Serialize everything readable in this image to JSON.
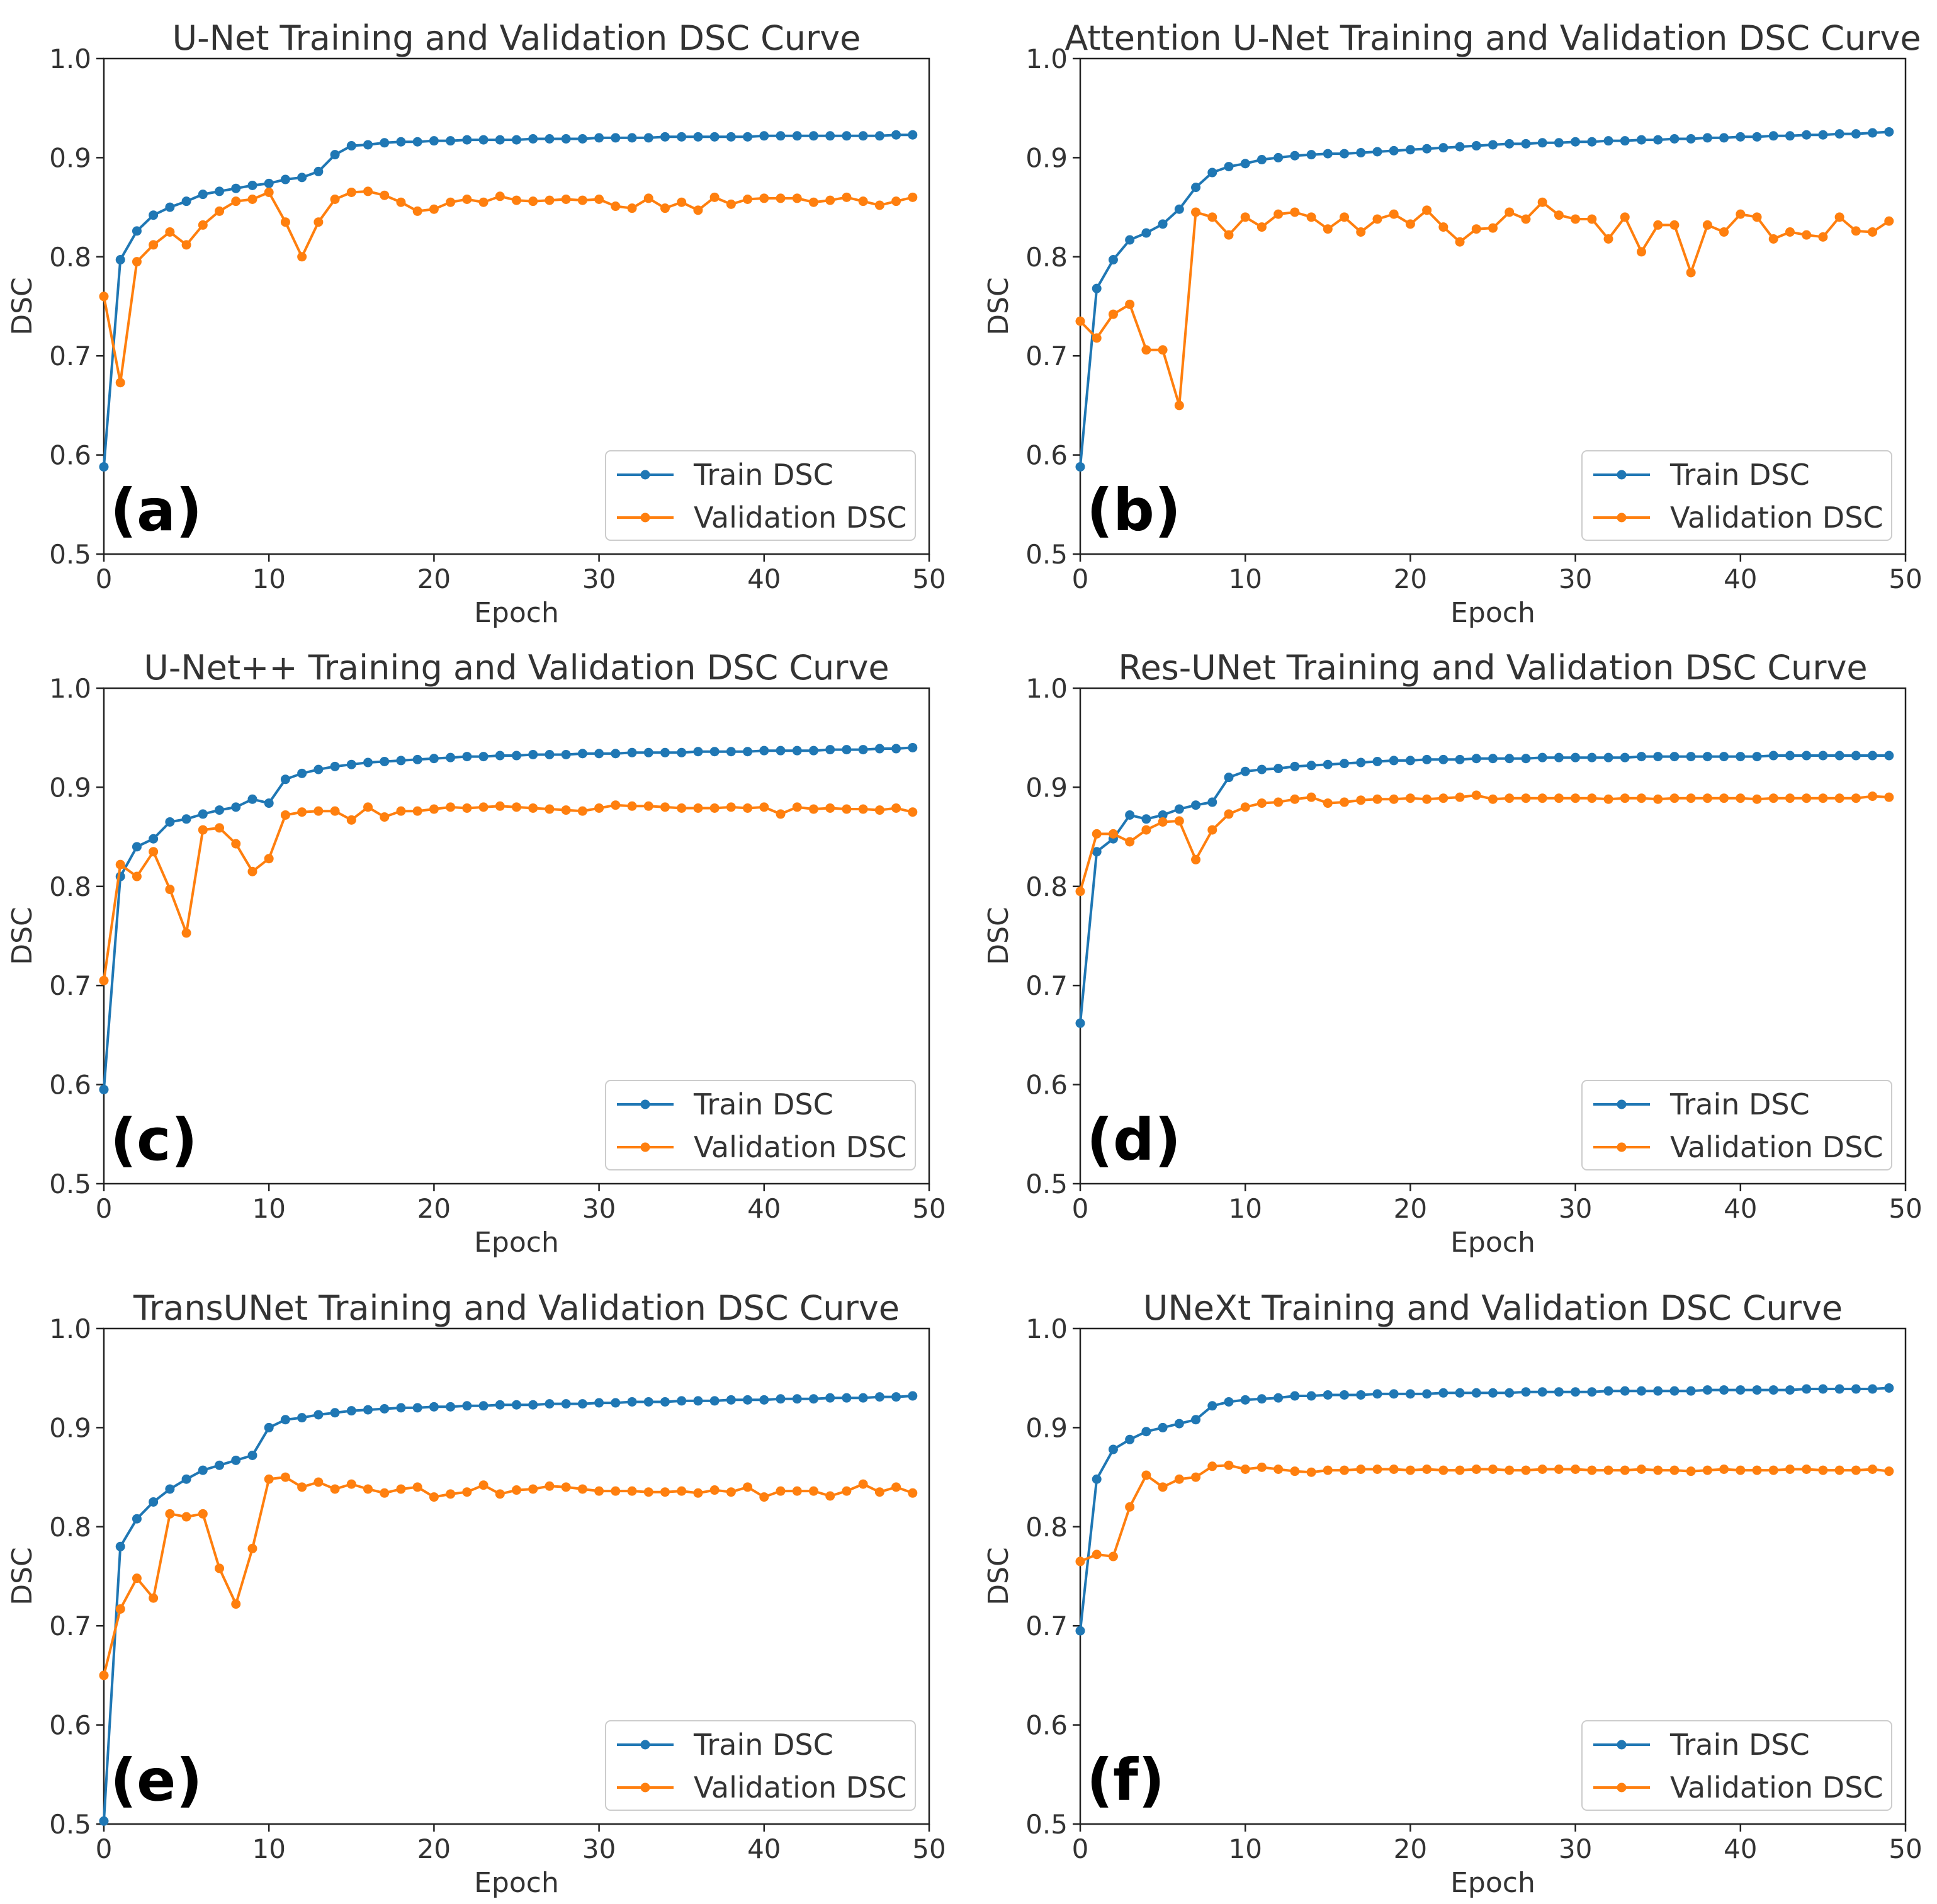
{
  "colors": {
    "train": "#1f77b4",
    "validation": "#ff7f0e"
  },
  "chart_data": [
    {
      "type": "line",
      "panel": "(a)",
      "title": "U-Net Training and Validation DSC Curve",
      "xlabel": "Epoch",
      "ylabel": "DSC",
      "xlim": [
        0,
        50
      ],
      "ylim": [
        0.5,
        1.0
      ],
      "xticks": [
        "0",
        "10",
        "20",
        "30",
        "40",
        "50"
      ],
      "yticks": [
        "0.5",
        "0.6",
        "0.7",
        "0.8",
        "0.9",
        "1.0"
      ],
      "legend": "lower-right",
      "series": [
        {
          "name": "Train DSC",
          "values": [
            0.588,
            0.797,
            0.826,
            0.842,
            0.85,
            0.856,
            0.863,
            0.866,
            0.869,
            0.872,
            0.874,
            0.878,
            0.88,
            0.886,
            0.903,
            0.912,
            0.913,
            0.915,
            0.916,
            0.916,
            0.917,
            0.917,
            0.918,
            0.918,
            0.918,
            0.918,
            0.919,
            0.919,
            0.919,
            0.919,
            0.92,
            0.92,
            0.92,
            0.92,
            0.921,
            0.921,
            0.921,
            0.921,
            0.921,
            0.921,
            0.922,
            0.922,
            0.922,
            0.922,
            0.922,
            0.922,
            0.922,
            0.922,
            0.923,
            0.923
          ]
        },
        {
          "name": "Validation DSC",
          "values": [
            0.76,
            0.673,
            0.795,
            0.812,
            0.825,
            0.812,
            0.832,
            0.846,
            0.856,
            0.858,
            0.865,
            0.835,
            0.8,
            0.835,
            0.858,
            0.865,
            0.866,
            0.862,
            0.855,
            0.846,
            0.848,
            0.855,
            0.858,
            0.855,
            0.861,
            0.857,
            0.856,
            0.857,
            0.858,
            0.857,
            0.858,
            0.851,
            0.849,
            0.859,
            0.849,
            0.855,
            0.847,
            0.86,
            0.853,
            0.858,
            0.859,
            0.859,
            0.859,
            0.855,
            0.857,
            0.86,
            0.856,
            0.852,
            0.856,
            0.86
          ]
        }
      ]
    },
    {
      "type": "line",
      "panel": "(b)",
      "title": "Attention U-Net Training and Validation DSC Curve",
      "xlabel": "Epoch",
      "ylabel": "DSC",
      "xlim": [
        0,
        50
      ],
      "ylim": [
        0.5,
        1.0
      ],
      "xticks": [
        "0",
        "10",
        "20",
        "30",
        "40",
        "50"
      ],
      "yticks": [
        "0.5",
        "0.6",
        "0.7",
        "0.8",
        "0.9",
        "1.0"
      ],
      "legend": "lower-right",
      "series": [
        {
          "name": "Train DSC",
          "values": [
            0.588,
            0.768,
            0.797,
            0.817,
            0.824,
            0.833,
            0.848,
            0.87,
            0.885,
            0.891,
            0.894,
            0.898,
            0.9,
            0.902,
            0.903,
            0.904,
            0.904,
            0.905,
            0.906,
            0.907,
            0.908,
            0.909,
            0.91,
            0.911,
            0.912,
            0.913,
            0.914,
            0.914,
            0.915,
            0.915,
            0.916,
            0.916,
            0.917,
            0.917,
            0.918,
            0.918,
            0.919,
            0.919,
            0.92,
            0.92,
            0.921,
            0.921,
            0.922,
            0.922,
            0.923,
            0.923,
            0.924,
            0.924,
            0.925,
            0.926
          ]
        },
        {
          "name": "Validation DSC",
          "values": [
            0.735,
            0.718,
            0.742,
            0.752,
            0.706,
            0.706,
            0.65,
            0.845,
            0.84,
            0.822,
            0.84,
            0.83,
            0.843,
            0.845,
            0.84,
            0.828,
            0.84,
            0.825,
            0.838,
            0.843,
            0.833,
            0.847,
            0.83,
            0.815,
            0.828,
            0.829,
            0.845,
            0.838,
            0.855,
            0.842,
            0.838,
            0.838,
            0.818,
            0.84,
            0.805,
            0.832,
            0.832,
            0.784,
            0.832,
            0.825,
            0.843,
            0.84,
            0.818,
            0.825,
            0.822,
            0.82,
            0.84,
            0.826,
            0.825,
            0.836
          ]
        }
      ]
    },
    {
      "type": "line",
      "panel": "(c)",
      "title": "U-Net++ Training and Validation DSC Curve",
      "xlabel": "Epoch",
      "ylabel": "DSC",
      "xlim": [
        0,
        50
      ],
      "ylim": [
        0.5,
        1.0
      ],
      "xticks": [
        "0",
        "10",
        "20",
        "30",
        "40",
        "50"
      ],
      "yticks": [
        "0.5",
        "0.6",
        "0.7",
        "0.8",
        "0.9",
        "1.0"
      ],
      "legend": "lower-right",
      "series": [
        {
          "name": "Train DSC",
          "values": [
            0.595,
            0.81,
            0.84,
            0.848,
            0.865,
            0.868,
            0.873,
            0.877,
            0.88,
            0.888,
            0.884,
            0.908,
            0.914,
            0.918,
            0.921,
            0.923,
            0.925,
            0.926,
            0.927,
            0.928,
            0.929,
            0.93,
            0.931,
            0.931,
            0.932,
            0.932,
            0.933,
            0.933,
            0.933,
            0.934,
            0.934,
            0.934,
            0.935,
            0.935,
            0.935,
            0.935,
            0.936,
            0.936,
            0.936,
            0.936,
            0.937,
            0.937,
            0.937,
            0.937,
            0.938,
            0.938,
            0.938,
            0.939,
            0.939,
            0.94
          ]
        },
        {
          "name": "Validation DSC",
          "values": [
            0.705,
            0.822,
            0.81,
            0.835,
            0.797,
            0.753,
            0.857,
            0.859,
            0.843,
            0.815,
            0.828,
            0.872,
            0.875,
            0.876,
            0.876,
            0.867,
            0.88,
            0.87,
            0.876,
            0.876,
            0.878,
            0.88,
            0.879,
            0.88,
            0.881,
            0.88,
            0.879,
            0.878,
            0.877,
            0.876,
            0.879,
            0.882,
            0.881,
            0.881,
            0.88,
            0.879,
            0.879,
            0.879,
            0.88,
            0.879,
            0.88,
            0.873,
            0.88,
            0.878,
            0.879,
            0.878,
            0.878,
            0.877,
            0.879,
            0.875
          ]
        }
      ]
    },
    {
      "type": "line",
      "panel": "(d)",
      "title": "Res-UNet Training and Validation DSC Curve",
      "xlabel": "Epoch",
      "ylabel": "DSC",
      "xlim": [
        0,
        50
      ],
      "ylim": [
        0.5,
        1.0
      ],
      "xticks": [
        "0",
        "10",
        "20",
        "30",
        "40",
        "50"
      ],
      "yticks": [
        "0.5",
        "0.6",
        "0.7",
        "0.8",
        "0.9",
        "1.0"
      ],
      "legend": "lower-right",
      "series": [
        {
          "name": "Train DSC",
          "values": [
            0.662,
            0.835,
            0.848,
            0.872,
            0.868,
            0.872,
            0.878,
            0.882,
            0.885,
            0.91,
            0.916,
            0.918,
            0.919,
            0.921,
            0.922,
            0.923,
            0.924,
            0.925,
            0.926,
            0.927,
            0.927,
            0.928,
            0.928,
            0.928,
            0.929,
            0.929,
            0.929,
            0.929,
            0.93,
            0.93,
            0.93,
            0.93,
            0.93,
            0.93,
            0.931,
            0.931,
            0.931,
            0.931,
            0.931,
            0.931,
            0.931,
            0.931,
            0.932,
            0.932,
            0.932,
            0.932,
            0.932,
            0.932,
            0.932,
            0.932
          ]
        },
        {
          "name": "Validation DSC",
          "values": [
            0.795,
            0.853,
            0.853,
            0.845,
            0.857,
            0.865,
            0.866,
            0.827,
            0.857,
            0.873,
            0.88,
            0.884,
            0.885,
            0.888,
            0.89,
            0.884,
            0.885,
            0.887,
            0.888,
            0.888,
            0.889,
            0.888,
            0.889,
            0.89,
            0.892,
            0.888,
            0.889,
            0.889,
            0.889,
            0.889,
            0.889,
            0.889,
            0.888,
            0.889,
            0.889,
            0.888,
            0.889,
            0.889,
            0.889,
            0.889,
            0.889,
            0.888,
            0.889,
            0.889,
            0.889,
            0.889,
            0.889,
            0.889,
            0.891,
            0.89
          ]
        }
      ]
    },
    {
      "type": "line",
      "panel": "(e)",
      "title": "TransUNet Training and Validation DSC Curve",
      "xlabel": "Epoch",
      "ylabel": "DSC",
      "xlim": [
        0,
        50
      ],
      "ylim": [
        0.5,
        1.0
      ],
      "xticks": [
        "0",
        "10",
        "20",
        "30",
        "40",
        "50"
      ],
      "yticks": [
        "0.5",
        "0.6",
        "0.7",
        "0.8",
        "0.9",
        "1.0"
      ],
      "legend": "lower-right",
      "series": [
        {
          "name": "Train DSC",
          "values": [
            0.503,
            0.78,
            0.808,
            0.825,
            0.838,
            0.848,
            0.857,
            0.862,
            0.867,
            0.872,
            0.9,
            0.908,
            0.91,
            0.913,
            0.915,
            0.917,
            0.918,
            0.919,
            0.92,
            0.92,
            0.921,
            0.921,
            0.922,
            0.922,
            0.923,
            0.923,
            0.923,
            0.924,
            0.924,
            0.924,
            0.925,
            0.925,
            0.926,
            0.926,
            0.926,
            0.927,
            0.927,
            0.927,
            0.928,
            0.928,
            0.928,
            0.929,
            0.929,
            0.929,
            0.93,
            0.93,
            0.93,
            0.931,
            0.931,
            0.932
          ]
        },
        {
          "name": "Validation DSC",
          "values": [
            0.65,
            0.717,
            0.748,
            0.728,
            0.813,
            0.81,
            0.813,
            0.758,
            0.722,
            0.778,
            0.848,
            0.85,
            0.84,
            0.845,
            0.838,
            0.843,
            0.838,
            0.834,
            0.838,
            0.84,
            0.83,
            0.833,
            0.835,
            0.842,
            0.833,
            0.837,
            0.838,
            0.841,
            0.84,
            0.838,
            0.836,
            0.836,
            0.836,
            0.835,
            0.835,
            0.836,
            0.834,
            0.837,
            0.835,
            0.84,
            0.83,
            0.836,
            0.836,
            0.836,
            0.831,
            0.836,
            0.843,
            0.835,
            0.84,
            0.834
          ]
        }
      ]
    },
    {
      "type": "line",
      "panel": "(f)",
      "title": "UNeXt Training and Validation DSC Curve",
      "xlabel": "Epoch",
      "ylabel": "DSC",
      "xlim": [
        0,
        50
      ],
      "ylim": [
        0.5,
        1.0
      ],
      "xticks": [
        "0",
        "10",
        "20",
        "30",
        "40",
        "50"
      ],
      "yticks": [
        "0.5",
        "0.6",
        "0.7",
        "0.8",
        "0.9",
        "1.0"
      ],
      "legend": "lower-right",
      "series": [
        {
          "name": "Train DSC",
          "values": [
            0.695,
            0.848,
            0.878,
            0.888,
            0.896,
            0.9,
            0.904,
            0.908,
            0.922,
            0.926,
            0.928,
            0.929,
            0.93,
            0.932,
            0.932,
            0.933,
            0.933,
            0.933,
            0.934,
            0.934,
            0.934,
            0.934,
            0.935,
            0.935,
            0.935,
            0.935,
            0.935,
            0.936,
            0.936,
            0.936,
            0.936,
            0.936,
            0.937,
            0.937,
            0.937,
            0.937,
            0.937,
            0.937,
            0.938,
            0.938,
            0.938,
            0.938,
            0.938,
            0.938,
            0.939,
            0.939,
            0.939,
            0.939,
            0.939,
            0.94
          ]
        },
        {
          "name": "Validation DSC",
          "values": [
            0.765,
            0.772,
            0.77,
            0.82,
            0.852,
            0.84,
            0.848,
            0.85,
            0.861,
            0.862,
            0.858,
            0.86,
            0.858,
            0.856,
            0.855,
            0.857,
            0.857,
            0.858,
            0.858,
            0.858,
            0.857,
            0.858,
            0.857,
            0.857,
            0.858,
            0.858,
            0.857,
            0.857,
            0.858,
            0.858,
            0.858,
            0.857,
            0.857,
            0.857,
            0.858,
            0.857,
            0.857,
            0.856,
            0.857,
            0.858,
            0.857,
            0.857,
            0.857,
            0.858,
            0.858,
            0.857,
            0.857,
            0.857,
            0.858,
            0.856
          ]
        }
      ]
    }
  ]
}
